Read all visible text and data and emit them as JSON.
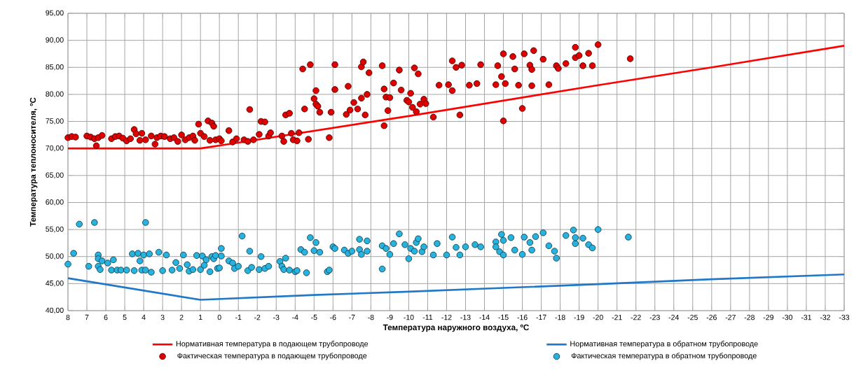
{
  "chart_data": {
    "type": "scatter",
    "xlabel": "Температура наружного воздуха, ºС",
    "ylabel": "Температура теплоносителя, ºС",
    "xlim": [
      8,
      -33
    ],
    "xticks": [
      8,
      7,
      6,
      5,
      4,
      3,
      2,
      1,
      0,
      -1,
      -2,
      -3,
      -4,
      -5,
      -6,
      -7,
      -8,
      -9,
      -10,
      -11,
      -12,
      -13,
      -14,
      -15,
      -16,
      -17,
      -18,
      -19,
      -20,
      -21,
      -22,
      -23,
      -24,
      -25,
      -26,
      -27,
      -28,
      -29,
      -30,
      -31,
      -32,
      -33
    ],
    "ylim": [
      40,
      95
    ],
    "yticks": [
      {
        "value": 40,
        "label": "40,00"
      },
      {
        "value": 45,
        "label": "45,00"
      },
      {
        "value": 50,
        "label": "50,00"
      },
      {
        "value": 55,
        "label": "55,00"
      },
      {
        "value": 60,
        "label": "60,00"
      },
      {
        "value": 65,
        "label": "65,00"
      },
      {
        "value": 70,
        "label": "70,00"
      },
      {
        "value": 75,
        "label": "75,00"
      },
      {
        "value": 80,
        "label": "80,00"
      },
      {
        "value": 85,
        "label": "85,00"
      },
      {
        "value": 90,
        "label": "90,00"
      },
      {
        "value": 95,
        "label": "95,00"
      }
    ],
    "grid": true,
    "legend": "bottom",
    "series": [
      {
        "name": "Нормативная температура в подающем трубопроводе",
        "type": "line",
        "marker": "none",
        "color": "#ff0000",
        "x": [
          8,
          1,
          -0.5,
          -10,
          -20,
          -26,
          -33
        ],
        "values": [
          70,
          70,
          70.8,
          76.0,
          81.7,
          85.0,
          89.0
        ]
      },
      {
        "name": "Нормативная температура в обратном трубопроводе",
        "type": "line",
        "marker": "none",
        "color": "#1f78c8",
        "x": [
          8,
          1,
          -5,
          -10,
          -15,
          -20,
          -26,
          -33
        ],
        "values": [
          46,
          42,
          42.9,
          43.5,
          44.2,
          44.9,
          45.8,
          46.7
        ]
      },
      {
        "name": "Фактическая температура в подающем трубопроводе",
        "marker": "circle",
        "color": "#e00000",
        "x": [
          8,
          7.8,
          7.6,
          7,
          6.8,
          6.6,
          6.5,
          6.4,
          6.2,
          5.7,
          5.5,
          5.3,
          5.1,
          4.9,
          4.7,
          4.5,
          4.4,
          4.2,
          4.1,
          3.9,
          3.6,
          3.4,
          3.3,
          3.1,
          2.9,
          2.6,
          2.4,
          2.2,
          2,
          1.8,
          1.6,
          1.4,
          1.3,
          1.1,
          1.0,
          0.8,
          0.6,
          0.5,
          0.4,
          0.3,
          0.2,
          0,
          -0.1,
          -0.5,
          -0.7,
          -0.9,
          -1.3,
          -1.5,
          -1.6,
          -1.8,
          -2.1,
          -2.2,
          -2.4,
          -2.6,
          -2.7,
          -3.3,
          -3.4,
          -3.5,
          -3.7,
          -3.8,
          -3.9,
          -4.1,
          -4.2,
          -4.4,
          -4.5,
          -4.7,
          -4.8,
          -5.0,
          -5.1,
          -5.1,
          -5.2,
          -5.3,
          -5.8,
          -5.9,
          -6.1,
          -6.1,
          -6.7,
          -6.8,
          -6.9,
          -7.1,
          -7.3,
          -7.5,
          -7.5,
          -7.6,
          -7.7,
          -7.8,
          -7.9,
          -8.6,
          -8.7,
          -8.7,
          -8.8,
          -8.9,
          -9.0,
          -9.2,
          -9.5,
          -9.6,
          -9.9,
          -10.0,
          -10.1,
          -10.2,
          -10.3,
          -10.4,
          -10.5,
          -10.6,
          -10.8,
          -10.9,
          -11.3,
          -11.6,
          -12.1,
          -12.3,
          -12.3,
          -12.5,
          -12.7,
          -12.8,
          -13.2,
          -13.6,
          -13.8,
          -14.6,
          -14.7,
          -14.9,
          -15,
          -15,
          -15.1,
          -15.5,
          -15.6,
          -15.8,
          -16.0,
          -16.1,
          -16.4,
          -16.5,
          -16.5,
          -16.6,
          -17.1,
          -17.4,
          -17.8,
          -17.9,
          -18.3,
          -18.8,
          -18.8,
          -19,
          -19.2,
          -19.5,
          -19.7,
          -20,
          -21.7
        ],
        "values": [
          72,
          72.2,
          72.1,
          72.3,
          72.1,
          71.8,
          70.5,
          72,
          72.4,
          71.8,
          72.2,
          72.3,
          71.9,
          71.4,
          71.8,
          73.5,
          72.7,
          71.5,
          72.8,
          71.6,
          72.3,
          70.8,
          72,
          72.3,
          72.2,
          71.8,
          72,
          71.3,
          72.5,
          71.6,
          72,
          72.3,
          71.5,
          74.5,
          72.8,
          72.2,
          75.1,
          71.5,
          74.7,
          74.1,
          71.6,
          71.8,
          71.4,
          73.3,
          71.2,
          71.8,
          71.6,
          71.3,
          77.2,
          71.6,
          72.6,
          75,
          74.9,
          72.3,
          72.9,
          72.3,
          71.3,
          76.2,
          76.5,
          72.8,
          71.6,
          71.4,
          72.9,
          84.7,
          77.3,
          71.7,
          85.5,
          79.2,
          80.7,
          78.2,
          77.8,
          76.7,
          72.0,
          76.7,
          85.5,
          80.9,
          76.3,
          81.5,
          77.1,
          78.5,
          77.3,
          79.3,
          85.1,
          86.0,
          76.2,
          80,
          84,
          85.3,
          81,
          74.2,
          79.5,
          77,
          79.4,
          82.1,
          84.5,
          80.8,
          78.9,
          78.6,
          80.2,
          77.6,
          84.9,
          76.8,
          83.8,
          78.2,
          79.1,
          78.3,
          75.8,
          81.7,
          81.8,
          80.7,
          86.2,
          85,
          76.2,
          85.4,
          81.7,
          82,
          85.5,
          81.8,
          85.3,
          83.3,
          87.5,
          75.1,
          82,
          87,
          84.7,
          81.7,
          77.4,
          87.5,
          85.4,
          84.6,
          81.6,
          88.1,
          86.5,
          81.8,
          85.3,
          84.8,
          85.7,
          88.7,
          86.8,
          87.2,
          85.3,
          87.6,
          85.3,
          89.2,
          86.6
        ]
      },
      {
        "name": "Фактическая температура в обратном трубопроводе",
        "marker": "circle",
        "color": "#27b3e0",
        "x": [
          8,
          7.7,
          7.4,
          6.9,
          6.6,
          6.4,
          6.4,
          6.4,
          6.3,
          6.2,
          5.9,
          5.7,
          5.6,
          5.4,
          5.2,
          4.9,
          4.6,
          4.5,
          4.3,
          4.2,
          4.1,
          4.0,
          3.9,
          3.9,
          3.7,
          3.6,
          3.2,
          3.0,
          2.8,
          2.5,
          2.3,
          2.1,
          1.9,
          1.7,
          1.6,
          1.4,
          1.2,
          1.0,
          0.9,
          0.8,
          0.7,
          0.5,
          0.4,
          0.3,
          0.2,
          0.1,
          -0.1,
          -0.1,
          0.0,
          -0.5,
          -0.7,
          -0.8,
          -1.0,
          -1.2,
          -1.5,
          -1.6,
          -1.7,
          -2.1,
          -2.2,
          -2.4,
          -2.6,
          -3.2,
          -3.3,
          -3.4,
          -3.5,
          -3.7,
          -4.0,
          -4.1,
          -4.3,
          -4.5,
          -4.6,
          -4.8,
          -5.0,
          -5.1,
          -5.3,
          -5.7,
          -5.8,
          -6.0,
          -6.1,
          -6.6,
          -6.8,
          -7.0,
          -7.4,
          -7.4,
          -7.5,
          -7.8,
          -7.8,
          -8.6,
          -8.6,
          -8.8,
          -9.0,
          -9.2,
          -9.5,
          -9.8,
          -10.0,
          -10.1,
          -10.3,
          -10.4,
          -10.5,
          -10.7,
          -10.8,
          -11.3,
          -11.5,
          -12.0,
          -12.3,
          -12.5,
          -12.7,
          -13.0,
          -13.5,
          -13.8,
          -14.6,
          -14.6,
          -14.8,
          -14.9,
          -15.0,
          -15.0,
          -15.4,
          -15.6,
          -16.0,
          -16.1,
          -16.4,
          -16.5,
          -16.7,
          -17.1,
          -17.4,
          -17.7,
          -17.8,
          -18.3,
          -18.7,
          -18.8,
          -18.8,
          -19.2,
          -19.5,
          -19.7,
          -20.0,
          -21.6
        ],
        "values": [
          48.6,
          50.6,
          56,
          48.2,
          56.3,
          48.2,
          50.3,
          49.6,
          47.6,
          49.2,
          48.8,
          47.5,
          49.4,
          47.5,
          47.5,
          47.5,
          50.5,
          47.4,
          50.6,
          49.2,
          47.5,
          50.3,
          56.3,
          47.5,
          50.5,
          47.1,
          50.8,
          47.4,
          50.3,
          47.5,
          48.9,
          47.8,
          50.3,
          48.5,
          47.3,
          47.6,
          50.2,
          47.6,
          50.1,
          48.4,
          49.4,
          47.2,
          50.0,
          49.6,
          50.2,
          47.8,
          51.5,
          50.1,
          47.9,
          49.2,
          48.8,
          47.8,
          48.2,
          53.8,
          47.4,
          51.0,
          48.0,
          47.6,
          50.0,
          47.8,
          48.2,
          49.1,
          48.2,
          47.6,
          49.7,
          47.5,
          47.2,
          47.4,
          51.3,
          50.8,
          47.0,
          53.5,
          51.1,
          52.6,
          50.8,
          47.2,
          47.5,
          51.8,
          51.5,
          51.2,
          50.6,
          51.0,
          53.2,
          51.3,
          50.4,
          52.9,
          51.0,
          52.0,
          47.7,
          51.5,
          50.4,
          52.4,
          54.2,
          52.2,
          49.6,
          51.5,
          51.0,
          52.6,
          53.3,
          50.9,
          51.8,
          50.3,
          52.4,
          50.3,
          53.6,
          51.7,
          50.3,
          51.8,
          52.2,
          51.8,
          52.7,
          51.8,
          50.9,
          54.1,
          53.0,
          50.3,
          53.5,
          51.2,
          50.4,
          53.6,
          52.6,
          51.2,
          53.7,
          54.4,
          52.0,
          51.0,
          49.7,
          53.9,
          54.9,
          52.4,
          53.5,
          53.4,
          52.2,
          51.6,
          55.0,
          53.6
        ]
      }
    ]
  }
}
